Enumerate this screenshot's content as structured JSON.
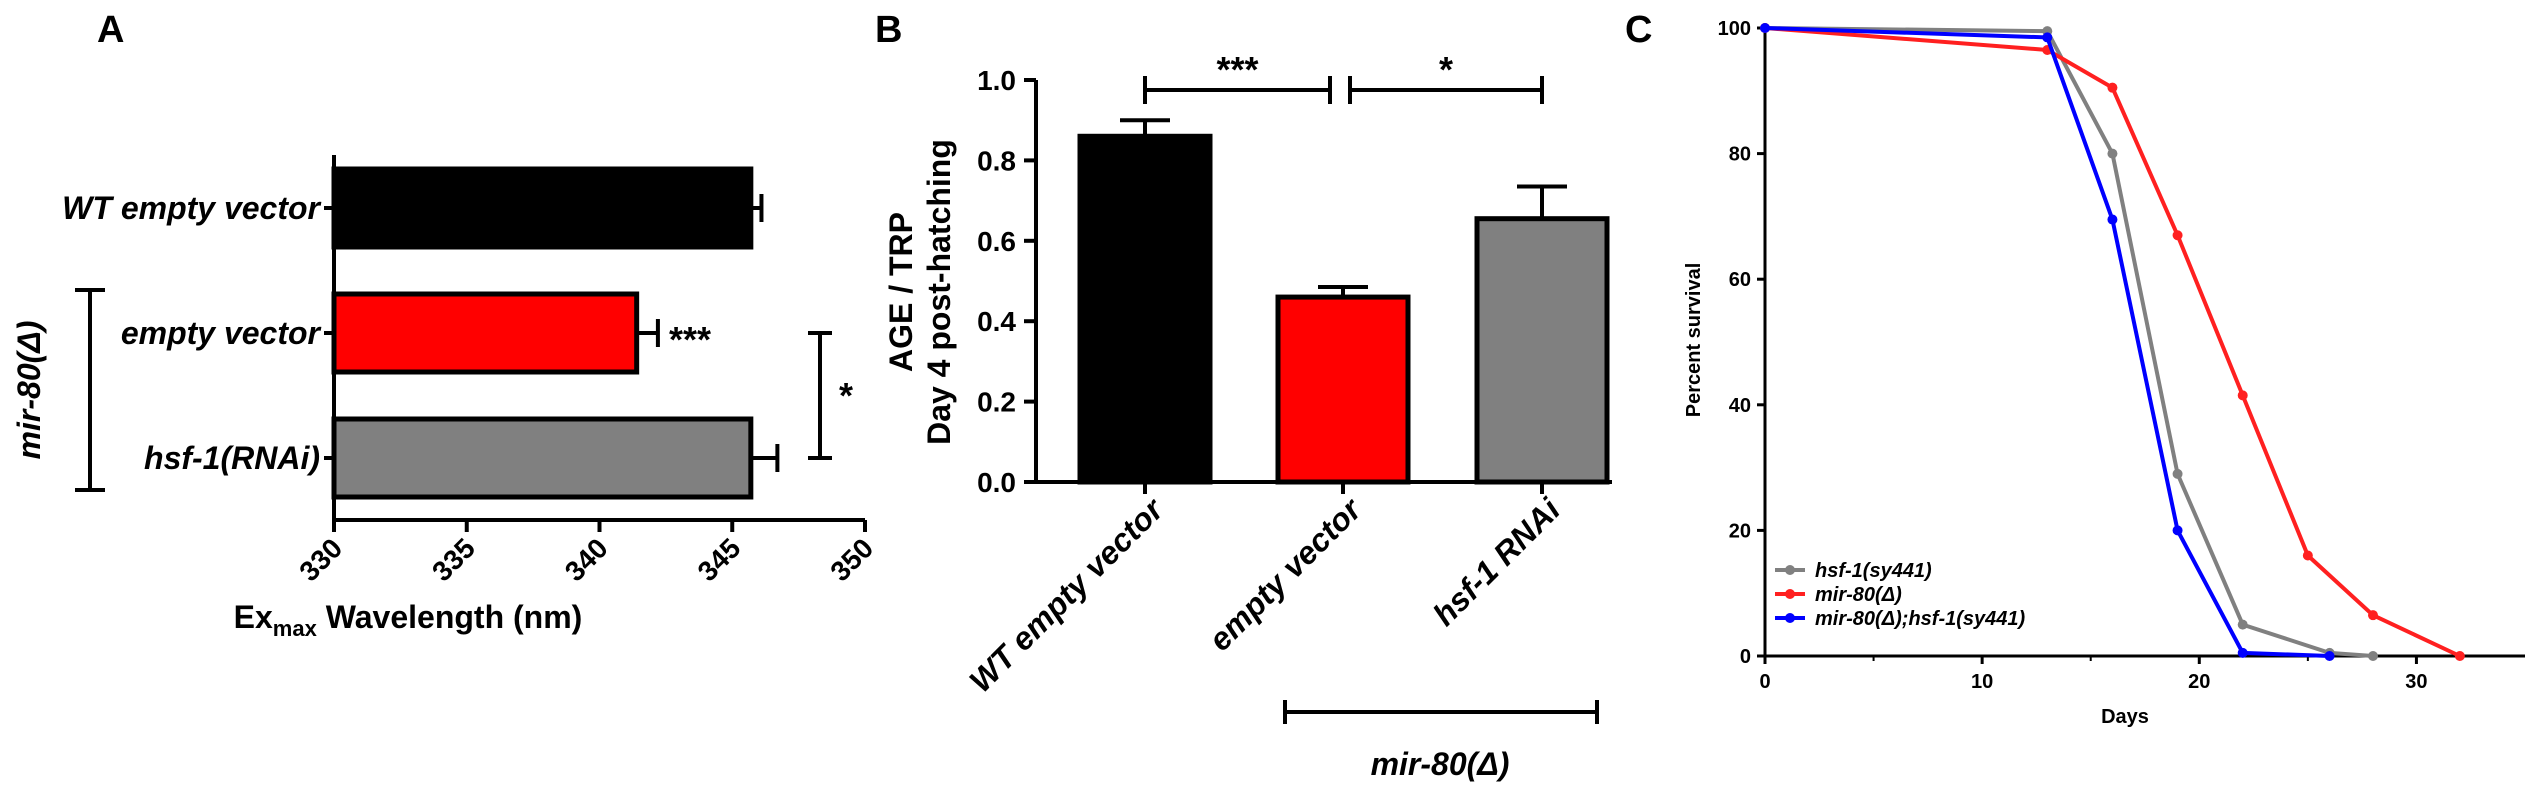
{
  "panels": {
    "a": {
      "letter": "A"
    },
    "b": {
      "letter": "B"
    },
    "c": {
      "letter": "C"
    }
  },
  "chart_data": [
    {
      "type": "bar",
      "orientation": "horizontal",
      "categories": [
        "WT empty vector",
        "empty vector",
        "hsf-1(RNAi)"
      ],
      "values": [
        345.7,
        341.4,
        345.7
      ],
      "errors": [
        0.4,
        0.8,
        1.0
      ],
      "colors": [
        "#000000",
        "#ff0000",
        "#808080"
      ],
      "xlabel_main": "Ex",
      "xlabel_sub": "max",
      "xlabel_rest": " Wavelength  (nm)",
      "xlim": [
        330,
        350
      ],
      "xticks": [
        "330",
        "335",
        "340",
        "345",
        "350"
      ],
      "group_label": "mir-80(Δ)",
      "annotations": [
        {
          "text": "***",
          "target": "empty vector"
        },
        {
          "text": "*",
          "between": [
            "empty vector",
            "hsf-1(RNAi)"
          ]
        }
      ]
    },
    {
      "type": "bar",
      "categories": [
        "WT empty vector",
        "empty vector",
        "hsf-1 RNAi"
      ],
      "values": [
        0.86,
        0.46,
        0.655
      ],
      "errors": [
        0.04,
        0.025,
        0.08
      ],
      "colors": [
        "#000000",
        "#ff0000",
        "#808080"
      ],
      "ylabel_line1": "AGE / TRP",
      "ylabel_line2": "Day 4 post-hatching",
      "ylim": [
        0.0,
        1.0
      ],
      "yticks": [
        "0.0",
        "0.2",
        "0.4",
        "0.6",
        "0.8",
        "1.0"
      ],
      "group_label": "mir-80(Δ)",
      "annotations": [
        {
          "text": "***",
          "between": [
            "WT empty vector",
            "empty vector"
          ]
        },
        {
          "text": "*",
          "between": [
            "empty vector",
            "hsf-1 RNAi"
          ]
        }
      ]
    },
    {
      "type": "line",
      "xlabel": "Days",
      "ylabel": "Percent survival",
      "xlim": [
        0,
        35
      ],
      "ylim": [
        0,
        100
      ],
      "xticks": [
        "0",
        "10",
        "20",
        "30"
      ],
      "yticks": [
        "0",
        "20",
        "40",
        "60",
        "80",
        "100"
      ],
      "legend_position": "bottom-left",
      "series": [
        {
          "name": "hsf-1(sy441)",
          "color": "#808080",
          "points": [
            [
              0,
              100
            ],
            [
              13,
              99.5
            ],
            [
              16,
              80
            ],
            [
              19,
              29
            ],
            [
              22,
              5
            ],
            [
              26,
              0.5
            ],
            [
              28,
              0
            ]
          ]
        },
        {
          "name": "mir-80(Δ)",
          "color": "#ff2020",
          "points": [
            [
              0,
              100
            ],
            [
              13,
              96.5
            ],
            [
              16,
              90.5
            ],
            [
              19,
              67
            ],
            [
              22,
              41.5
            ],
            [
              25,
              16
            ],
            [
              28,
              6.5
            ],
            [
              32,
              0
            ]
          ]
        },
        {
          "name": "mir-80(Δ);hsf-1(sy441)",
          "color": "#0000ff",
          "points": [
            [
              0,
              100
            ],
            [
              13,
              98.5
            ],
            [
              16,
              69.5
            ],
            [
              19,
              20
            ],
            [
              22,
              0.5
            ],
            [
              26,
              0
            ]
          ]
        }
      ]
    }
  ]
}
